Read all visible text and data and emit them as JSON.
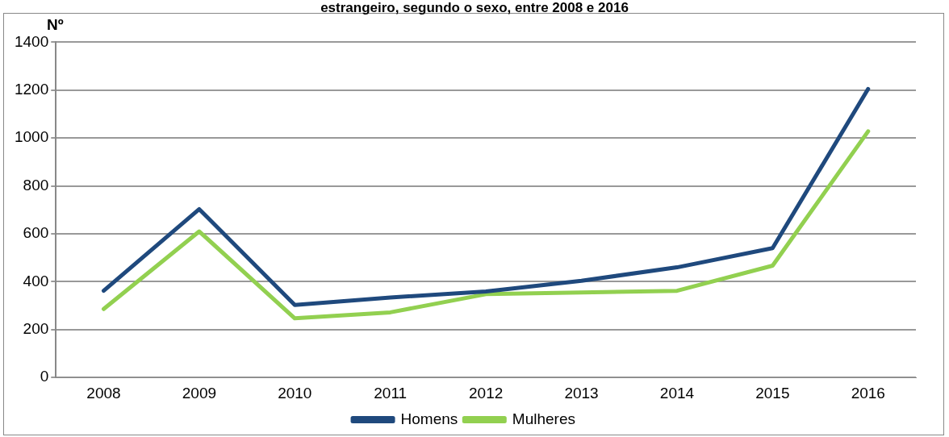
{
  "chart_data": {
    "type": "line",
    "title": "estrangeiro, segundo o sexo, entre 2008 e 2016",
    "ylabel": "Nº",
    "categories": [
      "2008",
      "2009",
      "2010",
      "2011",
      "2012",
      "2013",
      "2014",
      "2015",
      "2016"
    ],
    "series": [
      {
        "name": "Homens",
        "color": "#1f497d",
        "values": [
          362,
          703,
          303,
          334,
          359,
          404,
          460,
          540,
          1205
        ]
      },
      {
        "name": "Mulheres",
        "color": "#92d050",
        "values": [
          286,
          610,
          247,
          272,
          348,
          355,
          362,
          467,
          1028
        ]
      }
    ],
    "ylim": [
      0,
      1400
    ],
    "yticks": [
      0,
      200,
      400,
      600,
      800,
      1000,
      1200,
      1400
    ],
    "grid": "y",
    "legend": "bottom",
    "marker": "none",
    "line_style": "solid"
  }
}
